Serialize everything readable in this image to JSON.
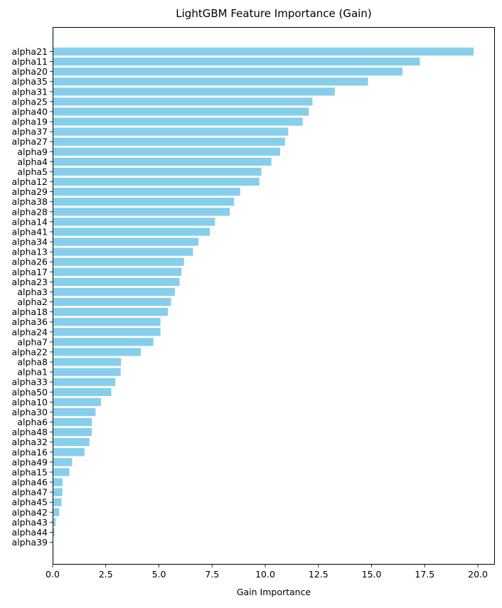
{
  "chart_data": {
    "type": "bar",
    "orientation": "horizontal",
    "title": "LightGBM Feature Importance (Gain)",
    "xlabel": "Gain Importance",
    "ylabel": "",
    "xlim": [
      0,
      20.8
    ],
    "xticks": [
      0.0,
      2.5,
      5.0,
      7.5,
      10.0,
      12.5,
      15.0,
      17.5,
      20.0
    ],
    "xtick_labels": [
      "0.0",
      "2.5",
      "5.0",
      "7.5",
      "10.0",
      "12.5",
      "15.0",
      "17.5",
      "20.0"
    ],
    "grid": false,
    "legend": "none",
    "bar_color": "#87ceeb",
    "categories": [
      "alpha21",
      "alpha11",
      "alpha20",
      "alpha35",
      "alpha31",
      "alpha25",
      "alpha40",
      "alpha19",
      "alpha37",
      "alpha27",
      "alpha9",
      "alpha4",
      "alpha5",
      "alpha12",
      "alpha29",
      "alpha38",
      "alpha28",
      "alpha14",
      "alpha41",
      "alpha34",
      "alpha13",
      "alpha26",
      "alpha17",
      "alpha23",
      "alpha3",
      "alpha2",
      "alpha18",
      "alpha36",
      "alpha24",
      "alpha7",
      "alpha22",
      "alpha8",
      "alpha1",
      "alpha33",
      "alpha50",
      "alpha10",
      "alpha30",
      "alpha6",
      "alpha48",
      "alpha32",
      "alpha16",
      "alpha49",
      "alpha15",
      "alpha46",
      "alpha47",
      "alpha45",
      "alpha42",
      "alpha43",
      "alpha44",
      "alpha39"
    ],
    "values": [
      19.8,
      17.27,
      16.45,
      14.83,
      13.27,
      12.22,
      12.05,
      11.76,
      11.08,
      10.93,
      10.7,
      10.29,
      9.82,
      9.72,
      8.82,
      8.54,
      8.33,
      7.64,
      7.4,
      6.86,
      6.6,
      6.18,
      6.06,
      5.97,
      5.75,
      5.57,
      5.42,
      5.07,
      5.07,
      4.74,
      4.15,
      3.22,
      3.2,
      2.95,
      2.76,
      2.27,
      2.02,
      1.84,
      1.84,
      1.73,
      1.5,
      0.92,
      0.79,
      0.47,
      0.46,
      0.42,
      0.31,
      0.14,
      0.09,
      0.0
    ]
  }
}
